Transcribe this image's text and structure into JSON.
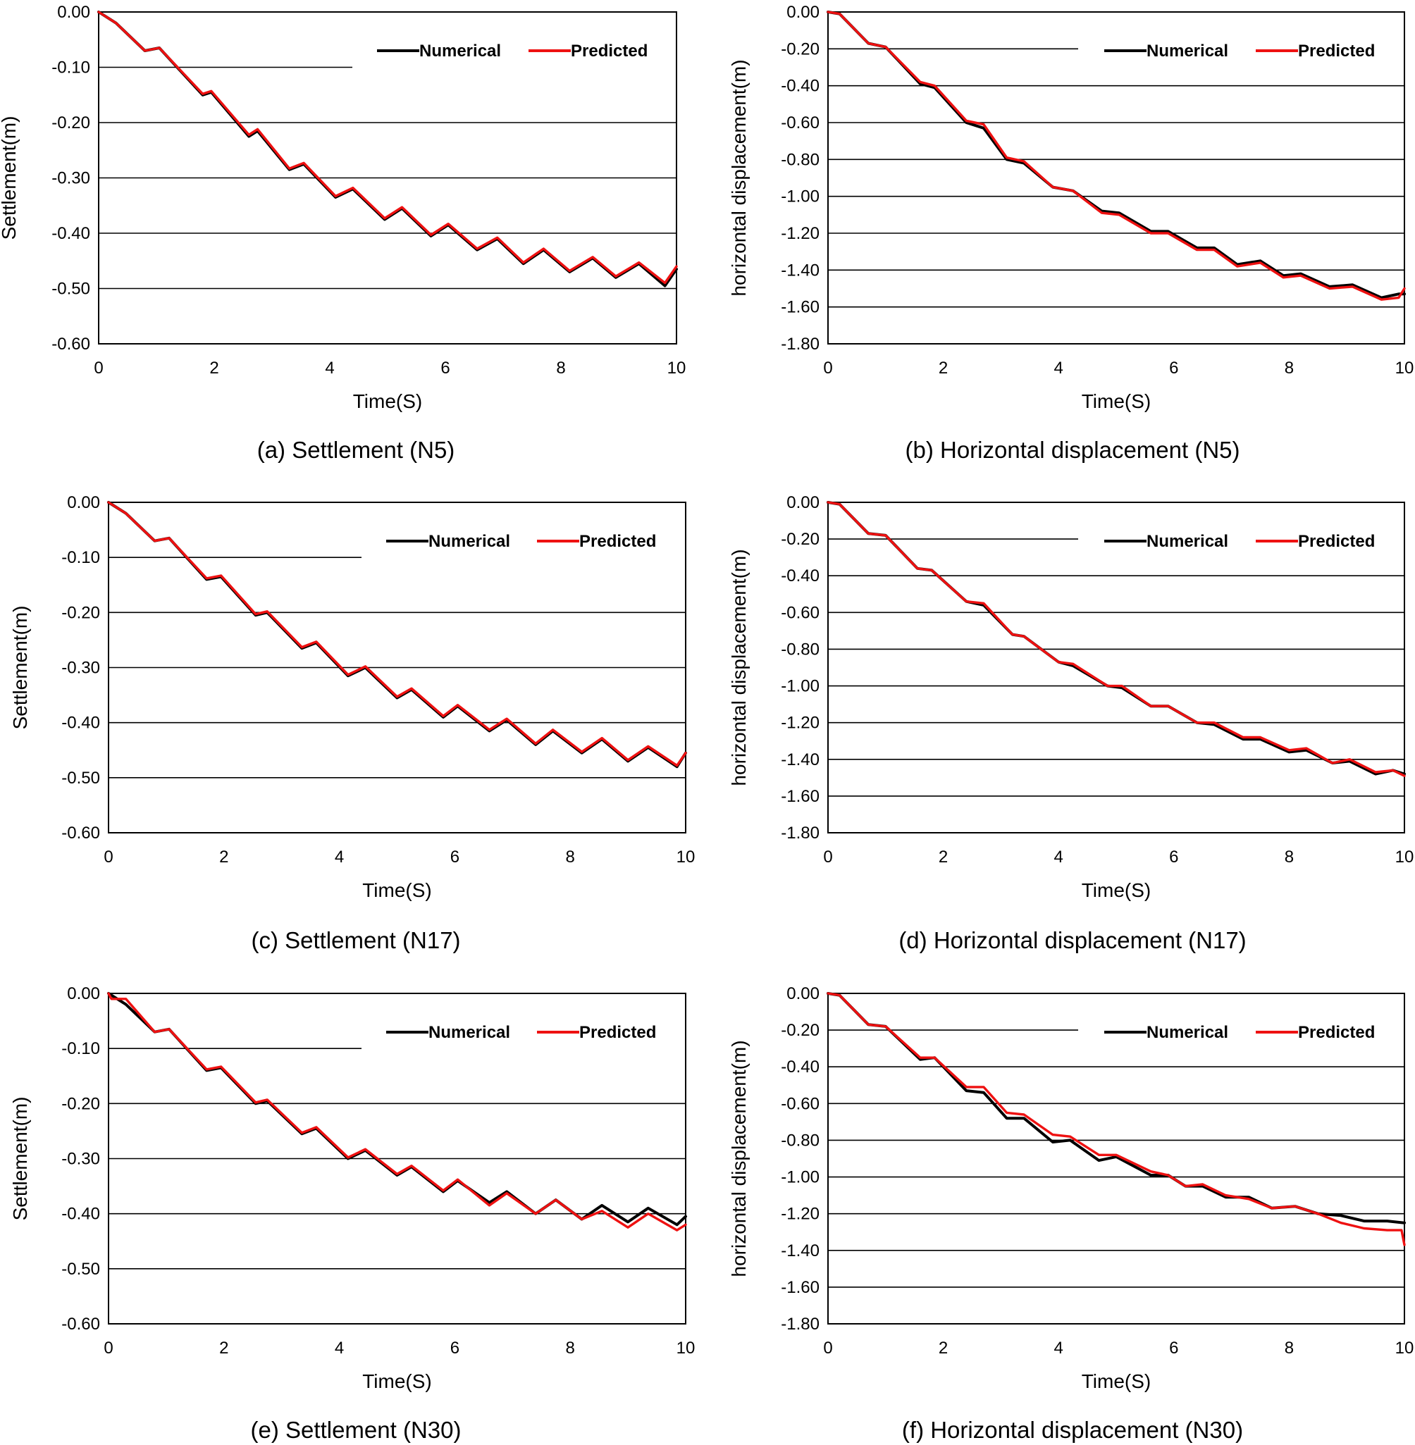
{
  "chart_data": [
    {
      "type": "line",
      "caption": "(a) Settlement (N5)",
      "xlabel": "Time(S)",
      "ylabel": "Settlement(m)",
      "xlim": [
        0,
        10
      ],
      "ylim": [
        -0.6,
        0.0
      ],
      "xticks": [
        "0",
        "2",
        "4",
        "6",
        "8",
        "10"
      ],
      "yticks": [
        "0.00",
        "-0.10",
        "-0.20",
        "-0.30",
        "-0.40",
        "-0.50",
        "-0.60"
      ],
      "grid": "horizontal",
      "legend": "top-right",
      "series": [
        {
          "name": "Numerical",
          "color": "#000000",
          "x": [
            0,
            0.3,
            0.8,
            1.05,
            1.8,
            1.95,
            2.6,
            2.75,
            3.3,
            3.55,
            4.1,
            4.4,
            4.95,
            5.25,
            5.75,
            6.05,
            6.55,
            6.9,
            7.35,
            7.7,
            8.15,
            8.55,
            8.95,
            9.35,
            9.8,
            10
          ],
          "y": [
            0,
            -0.02,
            -0.07,
            -0.065,
            -0.15,
            -0.145,
            -0.225,
            -0.215,
            -0.285,
            -0.275,
            -0.335,
            -0.32,
            -0.375,
            -0.355,
            -0.405,
            -0.385,
            -0.43,
            -0.41,
            -0.455,
            -0.43,
            -0.47,
            -0.445,
            -0.48,
            -0.455,
            -0.495,
            -0.465
          ]
        },
        {
          "name": "Predicted",
          "color": "#ee1111",
          "x": [
            0,
            0.3,
            0.8,
            1.05,
            1.8,
            1.95,
            2.6,
            2.75,
            3.3,
            3.55,
            4.1,
            4.4,
            4.95,
            5.25,
            5.75,
            6.05,
            6.55,
            6.9,
            7.35,
            7.7,
            8.15,
            8.55,
            8.95,
            9.35,
            9.8,
            10
          ],
          "y": [
            0,
            -0.02,
            -0.07,
            -0.065,
            -0.148,
            -0.143,
            -0.222,
            -0.212,
            -0.283,
            -0.273,
            -0.333,
            -0.318,
            -0.373,
            -0.353,
            -0.403,
            -0.383,
            -0.428,
            -0.408,
            -0.453,
            -0.428,
            -0.468,
            -0.443,
            -0.478,
            -0.453,
            -0.49,
            -0.46
          ]
        }
      ]
    },
    {
      "type": "line",
      "caption": "(b) Horizontal displacement (N5)",
      "xlabel": "Time(S)",
      "ylabel": "horizontal displacement(m)",
      "xlim": [
        0,
        10
      ],
      "ylim": [
        -1.8,
        0.0
      ],
      "xticks": [
        "0",
        "2",
        "4",
        "6",
        "8",
        "10"
      ],
      "yticks": [
        "0.00",
        "-0.20",
        "-0.40",
        "-0.60",
        "-0.80",
        "-1.00",
        "-1.20",
        "-1.40",
        "-1.60",
        "-1.80"
      ],
      "grid": "horizontal",
      "legend": "top-right",
      "series": [
        {
          "name": "Numerical",
          "color": "#000000",
          "x": [
            0,
            0.2,
            0.7,
            1.0,
            1.6,
            1.85,
            2.4,
            2.7,
            3.1,
            3.4,
            3.9,
            4.25,
            4.75,
            5.05,
            5.6,
            5.9,
            6.4,
            6.7,
            7.1,
            7.5,
            7.9,
            8.2,
            8.7,
            9.1,
            9.6,
            9.9,
            10
          ],
          "y": [
            0,
            -0.01,
            -0.17,
            -0.19,
            -0.39,
            -0.41,
            -0.6,
            -0.63,
            -0.8,
            -0.82,
            -0.95,
            -0.97,
            -1.08,
            -1.09,
            -1.19,
            -1.19,
            -1.28,
            -1.28,
            -1.37,
            -1.35,
            -1.43,
            -1.42,
            -1.49,
            -1.48,
            -1.55,
            -1.53,
            -1.53
          ]
        },
        {
          "name": "Predicted",
          "color": "#ee1111",
          "x": [
            0,
            0.2,
            0.7,
            1.0,
            1.6,
            1.85,
            2.4,
            2.7,
            3.1,
            3.4,
            3.9,
            4.25,
            4.75,
            5.05,
            5.6,
            5.9,
            6.4,
            6.7,
            7.1,
            7.5,
            7.9,
            8.2,
            8.7,
            9.1,
            9.6,
            9.9,
            10
          ],
          "y": [
            0,
            -0.01,
            -0.17,
            -0.19,
            -0.38,
            -0.4,
            -0.59,
            -0.61,
            -0.79,
            -0.81,
            -0.95,
            -0.97,
            -1.09,
            -1.1,
            -1.2,
            -1.2,
            -1.29,
            -1.29,
            -1.38,
            -1.36,
            -1.44,
            -1.43,
            -1.5,
            -1.49,
            -1.56,
            -1.55,
            -1.5
          ]
        }
      ]
    },
    {
      "type": "line",
      "caption": "(c) Settlement (N17)",
      "xlabel": "Time(S)",
      "ylabel": "Settlement(m)",
      "xlim": [
        0,
        10
      ],
      "ylim": [
        -0.6,
        0.0
      ],
      "xticks": [
        "0",
        "2",
        "4",
        "6",
        "8",
        "10"
      ],
      "yticks": [
        "0.00",
        "-0.10",
        "-0.20",
        "-0.30",
        "-0.40",
        "-0.50",
        "-0.60"
      ],
      "grid": "horizontal",
      "legend": "top-right",
      "series": [
        {
          "name": "Numerical",
          "color": "#000000",
          "x": [
            0,
            0.3,
            0.8,
            1.05,
            1.7,
            1.95,
            2.55,
            2.75,
            3.35,
            3.6,
            4.15,
            4.45,
            5.0,
            5.25,
            5.8,
            6.05,
            6.6,
            6.9,
            7.4,
            7.7,
            8.2,
            8.55,
            9.0,
            9.35,
            9.85,
            10
          ],
          "y": [
            0,
            -0.02,
            -0.07,
            -0.065,
            -0.14,
            -0.135,
            -0.205,
            -0.2,
            -0.265,
            -0.255,
            -0.315,
            -0.3,
            -0.355,
            -0.34,
            -0.39,
            -0.37,
            -0.415,
            -0.395,
            -0.44,
            -0.415,
            -0.455,
            -0.43,
            -0.47,
            -0.445,
            -0.48,
            -0.455
          ]
        },
        {
          "name": "Predicted",
          "color": "#ee1111",
          "x": [
            0,
            0.3,
            0.8,
            1.05,
            1.7,
            1.95,
            2.55,
            2.75,
            3.35,
            3.6,
            4.15,
            4.45,
            5.0,
            5.25,
            5.8,
            6.05,
            6.6,
            6.9,
            7.4,
            7.7,
            8.2,
            8.55,
            9.0,
            9.35,
            9.85,
            10
          ],
          "y": [
            0,
            -0.02,
            -0.07,
            -0.065,
            -0.138,
            -0.133,
            -0.203,
            -0.198,
            -0.263,
            -0.253,
            -0.313,
            -0.298,
            -0.353,
            -0.338,
            -0.388,
            -0.368,
            -0.413,
            -0.393,
            -0.438,
            -0.413,
            -0.453,
            -0.428,
            -0.468,
            -0.443,
            -0.478,
            -0.455
          ]
        }
      ]
    },
    {
      "type": "line",
      "caption": "(d) Horizontal displacement (N17)",
      "xlabel": "Time(S)",
      "ylabel": "horizontal displacement(m)",
      "xlim": [
        0,
        10
      ],
      "ylim": [
        -1.8,
        0.0
      ],
      "xticks": [
        "0",
        "2",
        "4",
        "6",
        "8",
        "10"
      ],
      "yticks": [
        "0.00",
        "-0.20",
        "-0.40",
        "-0.60",
        "-0.80",
        "-1.00",
        "-1.20",
        "-1.40",
        "-1.60",
        "-1.80"
      ],
      "grid": "horizontal",
      "legend": "top-right",
      "series": [
        {
          "name": "Numerical",
          "color": "#000000",
          "x": [
            0,
            0.2,
            0.7,
            1.0,
            1.55,
            1.8,
            2.4,
            2.7,
            3.2,
            3.4,
            4.0,
            4.25,
            4.85,
            5.1,
            5.6,
            5.9,
            6.4,
            6.7,
            7.2,
            7.5,
            8.0,
            8.3,
            8.75,
            9.05,
            9.5,
            9.8,
            10
          ],
          "y": [
            0,
            -0.01,
            -0.17,
            -0.18,
            -0.36,
            -0.37,
            -0.54,
            -0.56,
            -0.72,
            -0.73,
            -0.87,
            -0.89,
            -1.0,
            -1.01,
            -1.11,
            -1.11,
            -1.2,
            -1.21,
            -1.29,
            -1.29,
            -1.36,
            -1.35,
            -1.42,
            -1.41,
            -1.48,
            -1.46,
            -1.48
          ]
        },
        {
          "name": "Predicted",
          "color": "#ee1111",
          "x": [
            0,
            0.2,
            0.7,
            1.0,
            1.55,
            1.8,
            2.4,
            2.7,
            3.2,
            3.4,
            4.0,
            4.25,
            4.85,
            5.1,
            5.6,
            5.9,
            6.4,
            6.7,
            7.2,
            7.5,
            8.0,
            8.3,
            8.75,
            9.05,
            9.5,
            9.8,
            10
          ],
          "y": [
            0,
            -0.01,
            -0.17,
            -0.18,
            -0.36,
            -0.37,
            -0.54,
            -0.55,
            -0.72,
            -0.73,
            -0.87,
            -0.88,
            -1.0,
            -1.0,
            -1.11,
            -1.11,
            -1.2,
            -1.2,
            -1.28,
            -1.28,
            -1.35,
            -1.34,
            -1.42,
            -1.4,
            -1.47,
            -1.46,
            -1.49
          ]
        }
      ]
    },
    {
      "type": "line",
      "caption": "(e) Settlement (N30)",
      "xlabel": "Time(S)",
      "ylabel": "Settlement(m)",
      "xlim": [
        0,
        10
      ],
      "ylim": [
        -0.6,
        0.0
      ],
      "xticks": [
        "0",
        "2",
        "4",
        "6",
        "8",
        "10"
      ],
      "yticks": [
        "0.00",
        "-0.10",
        "-0.20",
        "-0.30",
        "-0.40",
        "-0.50",
        "-0.60"
      ],
      "grid": "horizontal",
      "legend": "top-right",
      "series": [
        {
          "name": "Numerical",
          "color": "#000000",
          "x": [
            0,
            0.3,
            0.8,
            1.05,
            1.7,
            1.95,
            2.55,
            2.75,
            3.35,
            3.6,
            4.15,
            4.45,
            5.0,
            5.25,
            5.8,
            6.05,
            6.6,
            6.9,
            7.4,
            7.75,
            8.2,
            8.55,
            9.0,
            9.35,
            9.85,
            10
          ],
          "y": [
            0,
            -0.02,
            -0.07,
            -0.065,
            -0.14,
            -0.135,
            -0.2,
            -0.195,
            -0.255,
            -0.245,
            -0.3,
            -0.285,
            -0.33,
            -0.315,
            -0.36,
            -0.34,
            -0.38,
            -0.36,
            -0.4,
            -0.375,
            -0.41,
            -0.385,
            -0.415,
            -0.39,
            -0.42,
            -0.405
          ]
        },
        {
          "name": "Predicted",
          "color": "#ee1111",
          "x": [
            0,
            0.05,
            0.3,
            0.8,
            1.05,
            1.7,
            1.95,
            2.55,
            2.75,
            3.35,
            3.6,
            4.15,
            4.45,
            5.0,
            5.25,
            5.8,
            6.05,
            6.6,
            6.9,
            7.4,
            7.75,
            8.2,
            8.55,
            9.0,
            9.35,
            9.85,
            10
          ],
          "y": [
            0,
            -0.01,
            -0.01,
            -0.07,
            -0.065,
            -0.138,
            -0.133,
            -0.198,
            -0.193,
            -0.253,
            -0.243,
            -0.298,
            -0.283,
            -0.328,
            -0.313,
            -0.358,
            -0.338,
            -0.385,
            -0.363,
            -0.4,
            -0.375,
            -0.41,
            -0.395,
            -0.425,
            -0.4,
            -0.43,
            -0.42
          ]
        }
      ]
    },
    {
      "type": "line",
      "caption": "(f) Horizontal displacement (N30)",
      "xlabel": "Time(S)",
      "ylabel": "horizontal displacement(m)",
      "xlim": [
        0,
        10
      ],
      "ylim": [
        -1.8,
        0.0
      ],
      "xticks": [
        "0",
        "2",
        "4",
        "6",
        "8",
        "10"
      ],
      "yticks": [
        "0.00",
        "-0.20",
        "-0.40",
        "-0.60",
        "-0.80",
        "-1.00",
        "-1.20",
        "-1.40",
        "-1.60",
        "-1.80"
      ],
      "grid": "horizontal",
      "legend": "top-right",
      "series": [
        {
          "name": "Numerical",
          "color": "#000000",
          "x": [
            0,
            0.2,
            0.7,
            1.0,
            1.6,
            1.85,
            2.4,
            2.7,
            3.1,
            3.4,
            3.9,
            4.2,
            4.7,
            5.0,
            5.6,
            5.9,
            6.2,
            6.5,
            6.9,
            7.3,
            7.7,
            8.1,
            8.5,
            8.9,
            9.3,
            9.7,
            10
          ],
          "y": [
            0,
            -0.01,
            -0.17,
            -0.18,
            -0.36,
            -0.35,
            -0.53,
            -0.54,
            -0.68,
            -0.68,
            -0.81,
            -0.8,
            -0.91,
            -0.89,
            -0.99,
            -0.99,
            -1.05,
            -1.05,
            -1.11,
            -1.11,
            -1.17,
            -1.16,
            -1.2,
            -1.21,
            -1.24,
            -1.24,
            -1.25
          ]
        },
        {
          "name": "Predicted",
          "color": "#ee1111",
          "x": [
            0,
            0.2,
            0.7,
            1.0,
            1.6,
            1.85,
            2.4,
            2.7,
            3.1,
            3.4,
            3.9,
            4.2,
            4.7,
            5.0,
            5.6,
            5.9,
            6.2,
            6.5,
            6.9,
            7.3,
            7.7,
            8.1,
            8.5,
            8.9,
            9.3,
            9.7,
            9.95,
            10
          ],
          "y": [
            0,
            -0.01,
            -0.17,
            -0.18,
            -0.35,
            -0.35,
            -0.51,
            -0.51,
            -0.65,
            -0.66,
            -0.77,
            -0.78,
            -0.88,
            -0.88,
            -0.97,
            -0.99,
            -1.05,
            -1.04,
            -1.1,
            -1.12,
            -1.17,
            -1.16,
            -1.2,
            -1.25,
            -1.28,
            -1.29,
            -1.29,
            -1.37
          ]
        }
      ]
    }
  ]
}
